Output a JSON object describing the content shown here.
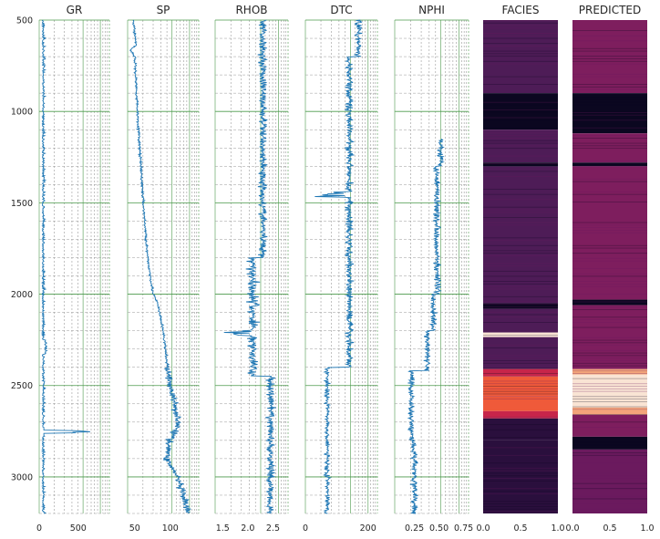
{
  "chart_data": [
    {
      "type": "line",
      "title": "GR",
      "xticks": [
        "0",
        "500"
      ],
      "xlim": [
        0,
        900
      ],
      "grid": "log-style",
      "depth_ticks": [
        "500",
        "1000",
        "1500",
        "2000",
        "2500",
        "3000"
      ],
      "ylim": [
        500,
        3200
      ]
    },
    {
      "type": "line",
      "title": "SP",
      "xticks": [
        "50",
        "100"
      ],
      "xlim": [
        40,
        140
      ],
      "grid": "log-style"
    },
    {
      "type": "line",
      "title": "RHOB",
      "xticks": [
        "1.5",
        "2.0",
        "2.5"
      ],
      "xlim": [
        1.35,
        2.8
      ],
      "grid": "log-style"
    },
    {
      "type": "line",
      "title": "DTC",
      "xticks": [
        "0",
        "200"
      ],
      "xlim": [
        0,
        230
      ],
      "grid": "log-style"
    },
    {
      "type": "line",
      "title": "NPHI",
      "xticks": [
        "0.25",
        "0.50",
        "0.75"
      ],
      "xlim": [
        0.05,
        0.8
      ],
      "grid": "log-style"
    },
    {
      "type": "heatmap",
      "title": "FACIES",
      "xticks": [
        "0.0",
        "0.5",
        "1.0"
      ],
      "xlim": [
        0,
        1
      ]
    },
    {
      "type": "heatmap",
      "title": "PREDICTED",
      "xticks": [
        "0.0",
        "0.5",
        "1.0"
      ],
      "xlim": [
        0,
        1
      ]
    }
  ],
  "colors": {
    "line": "#1f77b4",
    "grid_major": "#4c9a4c",
    "grid_minor": "#9a9a9a",
    "dark": "#0b0720",
    "deep": "#2a0f3d",
    "purple": "#4e1c57",
    "plum": "#6b1a5e",
    "magenta": "#7e1e5e",
    "crimson": "#c7254a",
    "orange": "#ef5a3a",
    "salmon": "#f3a57a",
    "cream": "#f9e4d4"
  }
}
